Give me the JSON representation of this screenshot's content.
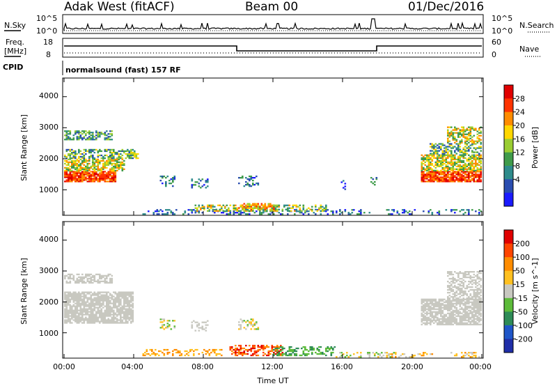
{
  "header": {
    "station": "Adak West (fitACF)",
    "beam": "Beam 00",
    "date": "01/Dec/2016"
  },
  "top_panels": {
    "nsky_label": "N.Sky",
    "nsky_ticks": [
      "10^5",
      "10^0"
    ],
    "nsearch_label": "N.Search",
    "nsearch_ticks": [
      "10^5",
      "10^0"
    ],
    "freq_label": "Freq.",
    "freq_unit": "[MHz]",
    "freq_ticks": [
      "18",
      "8"
    ],
    "nave_label": "Nave",
    "nave_ticks": [
      "60",
      "0"
    ],
    "cpid_label": "CPID",
    "cpid_text": "normalsound (fast) 157 RF"
  },
  "chart_data": [
    {
      "type": "heatmap",
      "quantity": "Power",
      "ylabel": "Slant Range [km]",
      "xlabel": "",
      "ylim": [
        180,
        4600
      ],
      "xlim": [
        0,
        24
      ],
      "x_ticks": [
        "00:00",
        "04:00",
        "08:00",
        "12:00",
        "16:00",
        "20:00",
        "00:00"
      ],
      "y_ticks": [
        "1000",
        "2000",
        "3000",
        "4000"
      ],
      "colorbar": {
        "label": "Power [dB]",
        "ticks": [
          "4",
          "8",
          "12",
          "16",
          "20",
          "24",
          "28"
        ],
        "colors": [
          "#1a1aff",
          "#2a4db0",
          "#2e8b8b",
          "#3f9b4a",
          "#9acd32",
          "#ffd700",
          "#ff8c00",
          "#ff3300",
          "#e00000"
        ]
      }
    },
    {
      "type": "heatmap",
      "quantity": "Velocity",
      "ylabel": "Slant Range [km]",
      "xlabel": "Time UT",
      "ylim": [
        180,
        4600
      ],
      "xlim": [
        0,
        24
      ],
      "x_ticks": [
        "00:00",
        "04:00",
        "08:00",
        "12:00",
        "16:00",
        "20:00",
        "00:00"
      ],
      "y_ticks": [
        "1000",
        "2000",
        "3000",
        "4000"
      ],
      "colorbar": {
        "label": "Velocity [m s^-1]",
        "ticks": [
          "200",
          "100",
          "50",
          "15",
          "-15",
          "-50",
          "-100",
          "-200"
        ],
        "colors": [
          "#1f2ea8",
          "#1f56c8",
          "#2e8b57",
          "#5dbb3a",
          "#c8c8c0",
          "#ffc020",
          "#ff8c00",
          "#ff4500",
          "#e00000"
        ]
      }
    }
  ]
}
